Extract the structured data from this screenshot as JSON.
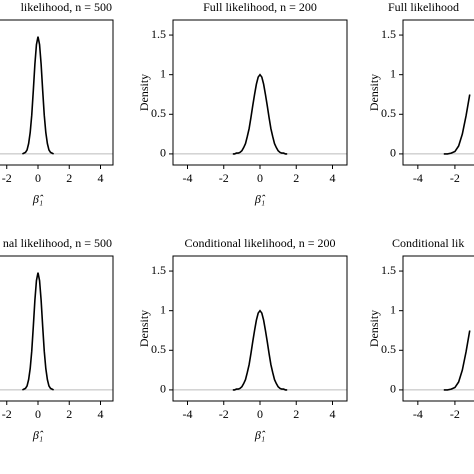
{
  "chart_data": [
    {
      "type": "line",
      "title": "likelihood, n = 500",
      "xlabel": "β̂₁",
      "x": [
        -1.0,
        -0.9,
        -0.8,
        -0.7,
        -0.6,
        -0.5,
        -0.4,
        -0.3,
        -0.2,
        -0.1,
        0,
        0.1,
        0.2,
        0.3,
        0.4,
        0.5,
        0.6,
        0.7,
        0.8,
        0.9,
        1.0
      ],
      "values": [
        0,
        0.01,
        0.02,
        0.05,
        0.13,
        0.27,
        0.49,
        0.8,
        1.13,
        1.38,
        1.48,
        1.38,
        1.13,
        0.8,
        0.49,
        0.27,
        0.13,
        0.05,
        0.02,
        0.01,
        0
      ],
      "xlim": [
        -4.8,
        4.8
      ],
      "ylim": [
        -0.14,
        1.69
      ],
      "xticks": [
        -2,
        0,
        2,
        4
      ],
      "hline": 0,
      "color": "#000000"
    },
    {
      "type": "line",
      "title": "Full likelihood, n = 200",
      "xlabel": "β̂₁",
      "ylabel": "Density",
      "x": [
        -1.5,
        -1.4,
        -1.3,
        -1.2,
        -1.1,
        -1.0,
        -0.9,
        -0.8,
        -0.7,
        -0.6,
        -0.5,
        -0.4,
        -0.3,
        -0.2,
        -0.1,
        0,
        0.1,
        0.2,
        0.3,
        0.4,
        0.5,
        0.6,
        0.7,
        0.8,
        0.9,
        1.0,
        1.1,
        1.2,
        1.3,
        1.4,
        1.5
      ],
      "values": [
        0,
        0,
        0.01,
        0.01,
        0.02,
        0.04,
        0.08,
        0.13,
        0.22,
        0.32,
        0.46,
        0.61,
        0.75,
        0.88,
        0.97,
        1.0,
        0.97,
        0.88,
        0.75,
        0.61,
        0.46,
        0.32,
        0.22,
        0.13,
        0.08,
        0.04,
        0.02,
        0.01,
        0.01,
        0,
        0
      ],
      "xlim": [
        -4.8,
        4.8
      ],
      "ylim": [
        -0.14,
        1.69
      ],
      "xticks": [
        -4,
        -2,
        0,
        2,
        4
      ],
      "yticks": [
        0,
        0.5,
        1,
        1.5
      ],
      "hline": 0,
      "color": "#000000"
    },
    {
      "type": "line",
      "title": "Full likelihood",
      "ylabel": "Density",
      "x": [
        -2.6,
        -2.4,
        -2.2,
        -2.0,
        -1.8,
        -1.6,
        -1.4,
        -1.2
      ],
      "values": [
        0,
        0,
        0.01,
        0.03,
        0.1,
        0.25,
        0.48,
        0.75
      ],
      "xlim": [
        -4.8,
        4.8
      ],
      "ylim": [
        -0.14,
        1.69
      ],
      "xticks": [
        -4,
        -2
      ],
      "yticks": [
        0,
        0.5,
        1,
        1.5
      ],
      "hline": 0,
      "color": "#000000"
    },
    {
      "type": "line",
      "title": "nal likelihood, n = 500",
      "xlabel": "β̂₁",
      "x": [
        -1.0,
        -0.9,
        -0.8,
        -0.7,
        -0.6,
        -0.5,
        -0.4,
        -0.3,
        -0.2,
        -0.1,
        0,
        0.1,
        0.2,
        0.3,
        0.4,
        0.5,
        0.6,
        0.7,
        0.8,
        0.9,
        1.0
      ],
      "values": [
        0,
        0.01,
        0.02,
        0.05,
        0.13,
        0.27,
        0.49,
        0.8,
        1.13,
        1.38,
        1.48,
        1.38,
        1.13,
        0.8,
        0.49,
        0.27,
        0.13,
        0.05,
        0.02,
        0.01,
        0
      ],
      "xlim": [
        -4.8,
        4.8
      ],
      "ylim": [
        -0.14,
        1.69
      ],
      "xticks": [
        -2,
        0,
        2,
        4
      ],
      "hline": 0,
      "color": "#000000"
    },
    {
      "type": "line",
      "title": "Conditional likelihood, n = 200",
      "xlabel": "β̂₁",
      "ylabel": "Density",
      "x": [
        -1.5,
        -1.4,
        -1.3,
        -1.2,
        -1.1,
        -1.0,
        -0.9,
        -0.8,
        -0.7,
        -0.6,
        -0.5,
        -0.4,
        -0.3,
        -0.2,
        -0.1,
        0,
        0.1,
        0.2,
        0.3,
        0.4,
        0.5,
        0.6,
        0.7,
        0.8,
        0.9,
        1.0,
        1.1,
        1.2,
        1.3,
        1.4,
        1.5
      ],
      "values": [
        0,
        0,
        0.01,
        0.01,
        0.02,
        0.04,
        0.08,
        0.13,
        0.22,
        0.32,
        0.46,
        0.61,
        0.75,
        0.88,
        0.97,
        1.0,
        0.97,
        0.88,
        0.75,
        0.61,
        0.46,
        0.32,
        0.22,
        0.13,
        0.08,
        0.04,
        0.02,
        0.01,
        0.01,
        0,
        0
      ],
      "xlim": [
        -4.8,
        4.8
      ],
      "ylim": [
        -0.14,
        1.69
      ],
      "xticks": [
        -4,
        -2,
        0,
        2,
        4
      ],
      "yticks": [
        0,
        0.5,
        1,
        1.5
      ],
      "hline": 0,
      "color": "#000000"
    },
    {
      "type": "line",
      "title": "Conditional lik",
      "ylabel": "Density",
      "x": [
        -2.6,
        -2.4,
        -2.2,
        -2.0,
        -1.8,
        -1.6,
        -1.4,
        -1.2
      ],
      "values": [
        0,
        0,
        0.01,
        0.03,
        0.1,
        0.25,
        0.48,
        0.75
      ],
      "xlim": [
        -4.8,
        4.8
      ],
      "ylim": [
        -0.14,
        1.69
      ],
      "xticks": [
        -4,
        -2
      ],
      "yticks": [
        0,
        0.5,
        1,
        1.5
      ],
      "hline": 0,
      "color": "#000000"
    }
  ]
}
